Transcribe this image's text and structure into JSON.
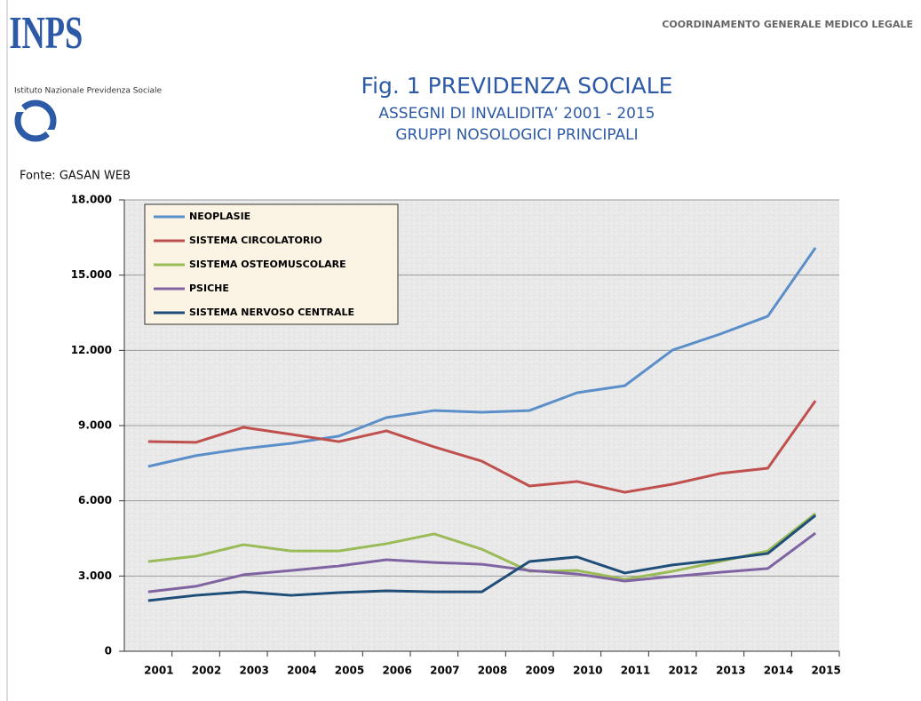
{
  "header": {
    "logo": "INPS",
    "institute": "Istituto Nazionale Previdenza Sociale",
    "department": "COORDINAMENTO GENERALE MEDICO LEGALE"
  },
  "chart_data": {
    "type": "line",
    "title": "Fig. 1 PREVIDENZA SOCIALE",
    "subtitle": [
      "ASSEGNI DI INVALIDITA’ 2001 - 2015",
      "GRUPPI NOSOLOGICI PRINCIPALI"
    ],
    "source": "Fonte: GASAN WEB",
    "categories": [
      "2001",
      "2002",
      "2003",
      "2004",
      "2005",
      "2006",
      "2007",
      "2008",
      "2009",
      "2010",
      "2011",
      "2012",
      "2013",
      "2014",
      "2015"
    ],
    "series": [
      {
        "name": "NEOPLASIE",
        "color": "#5b8fc9",
        "values": [
          7370,
          7800,
          8080,
          8290,
          8580,
          9320,
          9600,
          9530,
          9600,
          10310,
          10590,
          12010,
          12650,
          13360,
          16090
        ]
      },
      {
        "name": "SISTEMA CIRCOLATORIO",
        "color": "#c0504d",
        "values": [
          8360,
          8330,
          8930,
          8650,
          8360,
          8790,
          8150,
          7580,
          6590,
          6770,
          6340,
          6660,
          7090,
          7300,
          9990
        ]
      },
      {
        "name": "SISTEMA OSTEOMUSCOLARE",
        "color": "#9bbb59",
        "values": [
          3580,
          3790,
          4250,
          4000,
          4000,
          4290,
          4680,
          4070,
          3190,
          3220,
          2870,
          3190,
          3580,
          4000,
          5490
        ]
      },
      {
        "name": "PSICHE",
        "color": "#8064a2",
        "values": [
          2370,
          2590,
          3050,
          3220,
          3400,
          3650,
          3540,
          3470,
          3220,
          3080,
          2800,
          2980,
          3150,
          3300,
          4710
        ]
      },
      {
        "name": "SISTEMA NERVOSO CENTRALE",
        "color": "#1f4e79",
        "values": [
          2020,
          2230,
          2370,
          2230,
          2340,
          2410,
          2370,
          2370,
          3580,
          3760,
          3120,
          3440,
          3650,
          3900,
          5420
        ]
      }
    ],
    "ylim": [
      0,
      18000
    ],
    "yticks": [
      0,
      {
        "value": 3000,
        "label": "3.000"
      },
      {
        "value": 6000,
        "label": "6.000"
      },
      {
        "value": 9000,
        "label": "9.000"
      },
      {
        "value": 12000,
        "label": "12.000"
      },
      {
        "value": 15000,
        "label": "15.000"
      },
      {
        "value": 18000,
        "label": "18.000"
      }
    ],
    "grid": true,
    "legend": "top-left"
  }
}
